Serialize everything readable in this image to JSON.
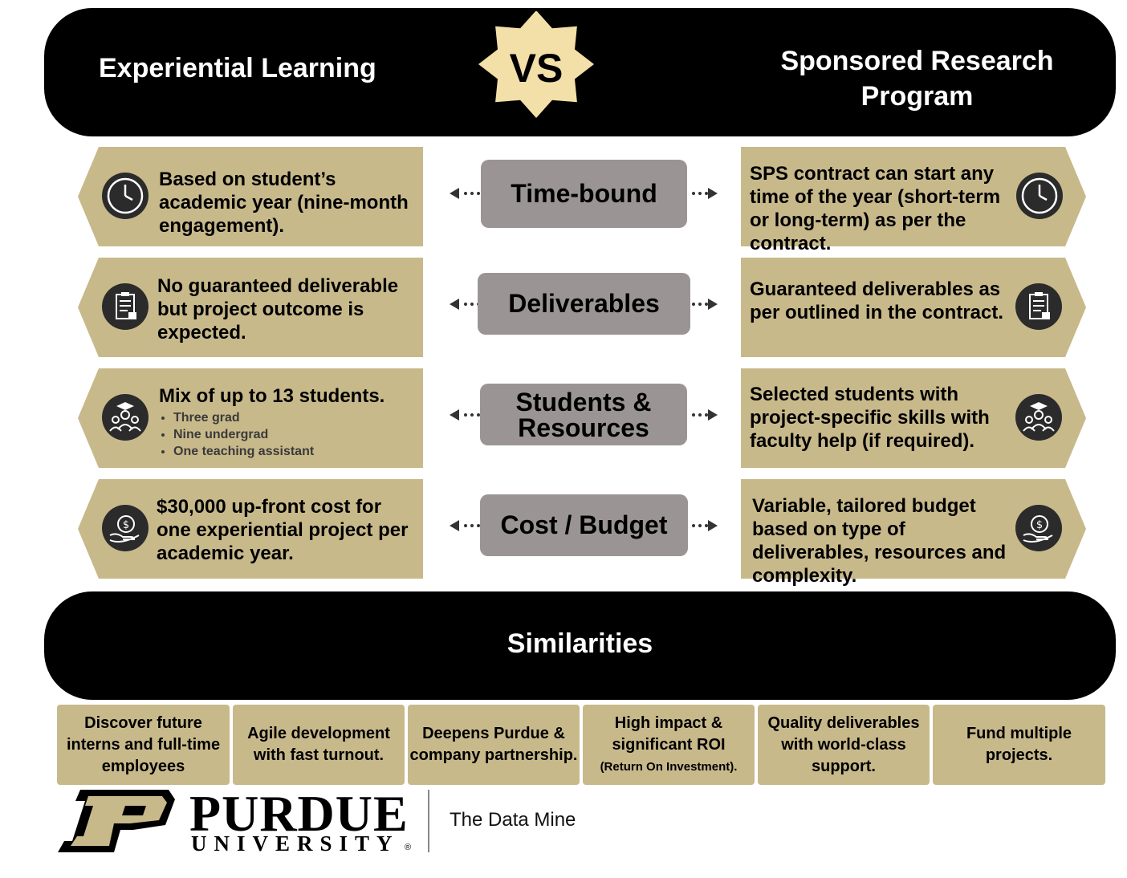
{
  "header": {
    "left_title": "Experiential Learning",
    "vs_label": "VS",
    "right_title": "Sponsored Research Program"
  },
  "rows": [
    {
      "label": "Time-bound",
      "left_text": "Based on student’s academic year (nine-month engagement).",
      "left_icon": "clock-icon",
      "right_text": "SPS contract can start any time of the year (short-term or long-term) as per the contract.",
      "right_icon": "clock-icon"
    },
    {
      "label": "Deliverables",
      "left_text": "No guaranteed deliverable but project outcome is expected.",
      "left_icon": "clipboard-icon",
      "right_text": "Guaranteed deliverables as per outlined in the contract.",
      "right_icon": "clipboard-icon"
    },
    {
      "label": "Students & Resources",
      "left_text": "Mix of up to 13 students.",
      "left_bullets": [
        "Three grad",
        "Nine undergrad",
        "One teaching assistant"
      ],
      "left_icon": "students-icon",
      "right_text": "Selected students with project-specific skills with faculty help (if required).",
      "right_icon": "students-icon"
    },
    {
      "label": "Cost / Budget",
      "left_text": "$30,000 up-front cost for one experiential project per academic year.",
      "left_icon": "money-bag-hand-icon",
      "right_text": "Variable, tailored budget based on type of deliverables, resources and complexity.",
      "right_icon": "money-bag-hand-icon"
    }
  ],
  "similarities": {
    "title": "Similarities",
    "items": [
      {
        "text": "Discover future interns and full-time employees"
      },
      {
        "text": "Agile development with fast turnout."
      },
      {
        "text": "Deepens Purdue & company partnership."
      },
      {
        "text": "High impact & significant ROI",
        "note": "(Return On Investment)."
      },
      {
        "text": "Quality deliverables with world-class support."
      },
      {
        "text": "Fund multiple projects."
      }
    ]
  },
  "footer": {
    "purdue": "PURDUE",
    "university": "UNIVERSITY",
    "registered": "®",
    "unit": "The Data Mine"
  },
  "colors": {
    "tan": "#c8b98b",
    "label_gray": "#9a9594",
    "vs_star": "#f3dfa8",
    "icon_dark": "#2b2b2b"
  }
}
